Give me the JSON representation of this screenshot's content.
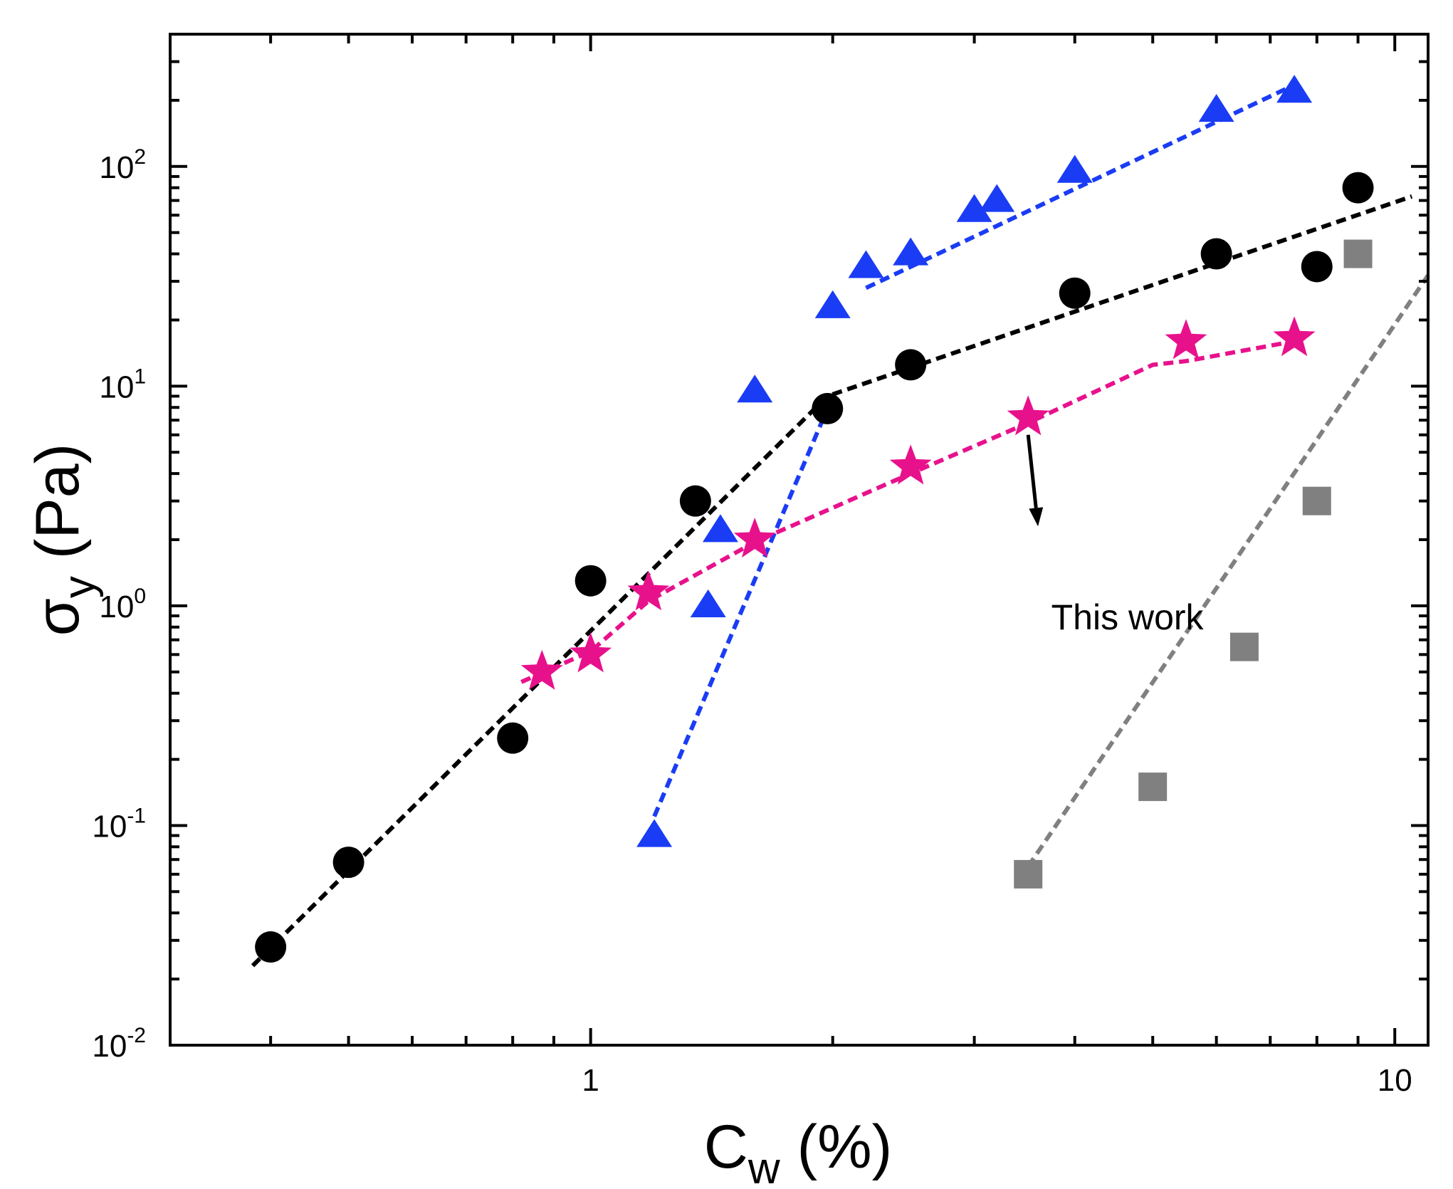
{
  "chart_data": {
    "type": "scatter",
    "xscale": "log",
    "yscale": "log",
    "xlim": [
      0.3,
      11
    ],
    "ylim": [
      0.01,
      400
    ],
    "x_ticks": [
      {
        "value": 1,
        "label": "1"
      },
      {
        "value": 10,
        "label": "10"
      }
    ],
    "y_ticks": [
      {
        "value": 0.01,
        "base": "10",
        "exp": "-2"
      },
      {
        "value": 0.1,
        "base": "10",
        "exp": "-1"
      },
      {
        "value": 1,
        "base": "10",
        "exp": "0"
      },
      {
        "value": 10,
        "base": "10",
        "exp": "1"
      },
      {
        "value": 100,
        "base": "10",
        "exp": "2"
      }
    ],
    "xlabel": {
      "main": "C",
      "sub": "w",
      "unit": " (%)"
    },
    "ylabel": {
      "main": "σ",
      "sub": "y",
      "unit": " (Pa)"
    },
    "series": [
      {
        "name": "circles",
        "marker": "circle",
        "color": "#000000",
        "x": [
          0.4,
          0.5,
          0.8,
          1.0,
          1.35,
          1.97,
          2.5,
          4.0,
          6.0,
          8.0,
          9.0
        ],
        "y": [
          0.028,
          0.068,
          0.25,
          1.3,
          3.0,
          7.9,
          12.5,
          26.5,
          40.0,
          35.0,
          80.0
        ],
        "fit": [
          [
            0.38,
            0.023
          ],
          [
            1.97,
            9.0
          ],
          [
            10.5,
            73.0
          ]
        ]
      },
      {
        "name": "triangles",
        "marker": "triangle",
        "color": "#1a3cf5",
        "x": [
          1.2,
          1.4,
          1.45,
          1.6,
          2.0,
          2.2,
          2.5,
          3.0,
          3.2,
          4.0,
          6.0,
          7.5
        ],
        "y": [
          0.09,
          1.0,
          2.2,
          9.5,
          23.0,
          35.0,
          40.0,
          63.0,
          70.0,
          95.0,
          180.0,
          220.0
        ],
        "fit": [
          [
            1.2,
            0.11
          ],
          [
            2.0,
            9.0
          ]
        ],
        "fit2": [
          [
            2.2,
            28.0
          ],
          [
            7.5,
            235.0
          ]
        ]
      },
      {
        "name": "stars",
        "marker": "star",
        "color": "#e8118c",
        "x": [
          0.87,
          1.0,
          1.18,
          1.6,
          2.5,
          3.5,
          5.5,
          7.5
        ],
        "y": [
          0.5,
          0.6,
          1.15,
          2.0,
          4.3,
          7.2,
          16.0,
          16.5
        ],
        "fit": [
          [
            0.82,
            0.45
          ],
          [
            1.0,
            0.62
          ],
          [
            1.18,
            1.05
          ],
          [
            1.6,
            1.95
          ],
          [
            2.5,
            4.0
          ],
          [
            3.5,
            6.8
          ],
          [
            5.0,
            12.5
          ],
          [
            5.5,
            13.0
          ],
          [
            7.5,
            16.0
          ]
        ]
      },
      {
        "name": "squares",
        "marker": "square",
        "color": "#808080",
        "x": [
          3.5,
          5.0,
          6.5,
          8.0,
          9.0
        ],
        "y": [
          0.06,
          0.15,
          0.65,
          3.0,
          40.0
        ],
        "fit": [
          [
            3.5,
            0.065
          ],
          [
            11.0,
            32.0
          ]
        ]
      }
    ],
    "annotations": [
      {
        "text": "This work",
        "x": 4.65,
        "y": 0.88,
        "arrow_from": [
          3.5,
          6.0
        ],
        "arrow_to": [
          3.6,
          2.3
        ]
      }
    ]
  }
}
